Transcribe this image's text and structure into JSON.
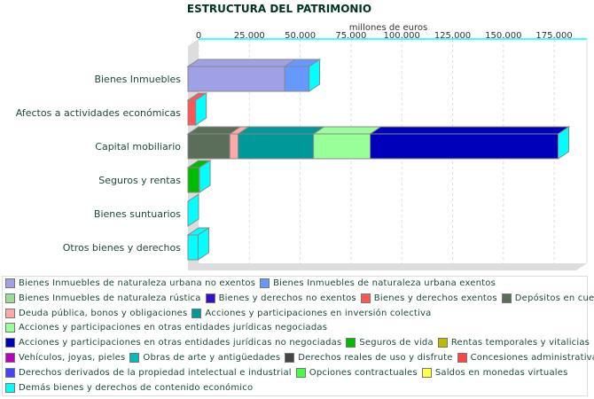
{
  "chart_data": {
    "type": "bar",
    "orientation": "horizontal",
    "stacked": true,
    "three_d": true,
    "title": "ESTRUCTURA DEL PATRIMONIO",
    "xlabel": "millones de euros",
    "xlim": [
      0,
      190000
    ],
    "xticks": [
      "0",
      "25.000",
      "50.000",
      "75.000",
      "100.000",
      "125.000",
      "150.000",
      "175.000"
    ],
    "xtick_values": [
      0,
      25000,
      50000,
      75000,
      100000,
      125000,
      150000,
      175000
    ],
    "grid": true,
    "legend_position": "bottom",
    "categories": [
      "Bienes Inmuebles",
      "Afectos a actividades económicas",
      "Capital mobiliario",
      "Seguros y rentas",
      "Bienes suntuarios",
      "Otros bienes y derechos"
    ],
    "series": [
      {
        "name": "Bienes Inmuebles de naturaleza urbana no exentos",
        "color": "#a0a0e6",
        "values": [
          47600,
          0,
          0,
          0,
          0,
          0
        ]
      },
      {
        "name": "Bienes Inmuebles de naturaleza urbana exentos",
        "color": "#6699ff",
        "values": [
          12000,
          0,
          0,
          0,
          0,
          0
        ]
      },
      {
        "name": "Bienes Inmuebles de naturaleza rústica",
        "color": "#99dd99",
        "values": [
          0,
          0,
          0,
          0,
          0,
          0
        ]
      },
      {
        "name": "Bienes y derechos no exentos",
        "color": "#3311cc",
        "values": [
          0,
          0,
          0,
          0,
          0,
          0
        ]
      },
      {
        "name": "Bienes y derechos exentos",
        "color": "#ff5555",
        "values": [
          0,
          3800,
          0,
          0,
          0,
          0
        ]
      },
      {
        "name": "Depósitos en cuenta",
        "color": "#5a6e5a",
        "values": [
          0,
          0,
          20600,
          0,
          0,
          0
        ]
      },
      {
        "name": "Deuda pública, bonos y obligaciones",
        "color": "#ffaaaa",
        "values": [
          0,
          0,
          4100,
          0,
          0,
          0
        ]
      },
      {
        "name": "Acciones y participaciones en inversión colectiva",
        "color": "#009999",
        "values": [
          0,
          0,
          37100,
          0,
          0,
          0
        ]
      },
      {
        "name": "Acciones y participaciones en otras entidades jurídicas negociadas",
        "color": "#99ff99",
        "values": [
          0,
          0,
          27900,
          0,
          0,
          0
        ]
      },
      {
        "name": "Acciones y participaciones en otras entidades jurídicas no negociadas",
        "color": "#0000bb",
        "values": [
          0,
          0,
          92500,
          0,
          0,
          0
        ]
      },
      {
        "name": "Seguros de vida",
        "color": "#00bb00",
        "values": [
          0,
          0,
          0,
          5500,
          0,
          0
        ]
      },
      {
        "name": "Rentas temporales y vitalicias",
        "color": "#bbbb00",
        "values": [
          0,
          0,
          0,
          200,
          0,
          0
        ]
      },
      {
        "name": "Vehículos, joyas, pieles",
        "color": "#bb00bb",
        "values": [
          0,
          0,
          0,
          0,
          0,
          0
        ]
      },
      {
        "name": "Obras de arte y antigüedades",
        "color": "#00bbbb",
        "values": [
          0,
          0,
          0,
          0,
          0,
          0
        ]
      },
      {
        "name": "Derechos reales de uso y disfrute",
        "color": "#444444",
        "values": [
          0,
          0,
          0,
          0,
          0,
          0
        ]
      },
      {
        "name": "Concesiones administrativas",
        "color": "#ff4444",
        "values": [
          0,
          0,
          0,
          0,
          0,
          0
        ]
      },
      {
        "name": "Derechos derivados de la propiedad intelectual e industrial",
        "color": "#4444ff",
        "values": [
          0,
          0,
          0,
          0,
          0,
          0
        ]
      },
      {
        "name": "Opciones contractuales",
        "color": "#44ff44",
        "values": [
          0,
          0,
          0,
          0,
          0,
          0
        ]
      },
      {
        "name": "Saldos en monedas virtuales",
        "color": "#ffff44",
        "values": [
          0,
          0,
          0,
          0,
          0,
          0
        ]
      },
      {
        "name": "Demás bienes y derechos de contenido económico",
        "color": "#00ffff",
        "values": [
          0,
          0,
          0,
          0,
          0,
          5000
        ]
      }
    ]
  }
}
